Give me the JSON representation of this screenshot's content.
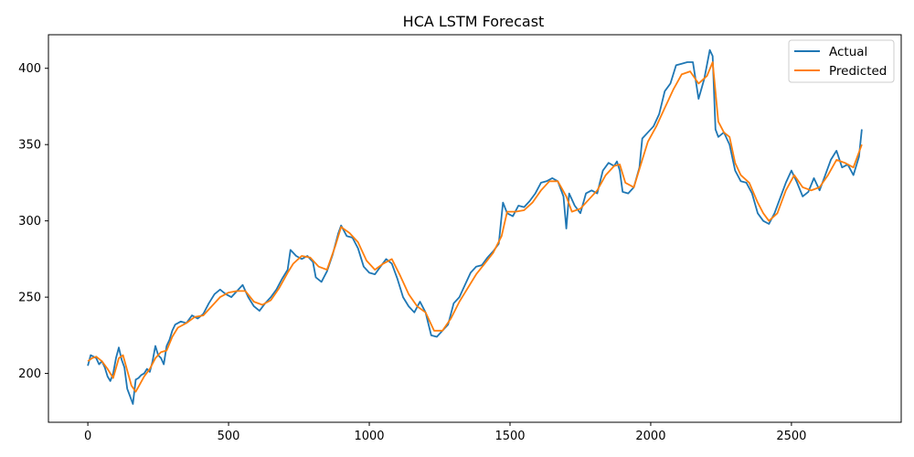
{
  "chart_data": {
    "type": "line",
    "title": "HCA LSTM Forecast",
    "xlabel": "",
    "ylabel": "",
    "xlim": [
      -140,
      2890
    ],
    "ylim": [
      168,
      422
    ],
    "x_ticks": [
      0,
      500,
      1000,
      1500,
      2000,
      2500
    ],
    "y_ticks": [
      200,
      250,
      300,
      350,
      400
    ],
    "grid": false,
    "legend_position": "top-right",
    "series": [
      {
        "name": "Actual",
        "color": "#1f77b4",
        "points": [
          [
            0,
            205
          ],
          [
            10,
            212
          ],
          [
            20,
            211
          ],
          [
            30,
            210
          ],
          [
            40,
            206
          ],
          [
            50,
            208
          ],
          [
            60,
            204
          ],
          [
            70,
            198
          ],
          [
            80,
            195
          ],
          [
            90,
            200
          ],
          [
            100,
            210
          ],
          [
            110,
            217
          ],
          [
            120,
            209
          ],
          [
            130,
            204
          ],
          [
            140,
            190
          ],
          [
            150,
            185
          ],
          [
            160,
            180
          ],
          [
            170,
            196
          ],
          [
            180,
            197
          ],
          [
            190,
            199
          ],
          [
            200,
            200
          ],
          [
            210,
            203
          ],
          [
            220,
            201
          ],
          [
            230,
            208
          ],
          [
            240,
            218
          ],
          [
            250,
            212
          ],
          [
            260,
            210
          ],
          [
            270,
            206
          ],
          [
            280,
            218
          ],
          [
            290,
            222
          ],
          [
            300,
            228
          ],
          [
            310,
            232
          ],
          [
            330,
            234
          ],
          [
            350,
            233
          ],
          [
            370,
            238
          ],
          [
            390,
            236
          ],
          [
            410,
            239
          ],
          [
            430,
            246
          ],
          [
            450,
            252
          ],
          [
            470,
            255
          ],
          [
            490,
            252
          ],
          [
            510,
            250
          ],
          [
            530,
            254
          ],
          [
            550,
            258
          ],
          [
            570,
            250
          ],
          [
            590,
            244
          ],
          [
            610,
            241
          ],
          [
            630,
            246
          ],
          [
            650,
            250
          ],
          [
            670,
            255
          ],
          [
            690,
            262
          ],
          [
            710,
            268
          ],
          [
            720,
            281
          ],
          [
            740,
            277
          ],
          [
            760,
            275
          ],
          [
            780,
            277
          ],
          [
            800,
            273
          ],
          [
            810,
            263
          ],
          [
            830,
            260
          ],
          [
            850,
            267
          ],
          [
            870,
            278
          ],
          [
            890,
            292
          ],
          [
            900,
            297
          ],
          [
            920,
            290
          ],
          [
            940,
            289
          ],
          [
            960,
            282
          ],
          [
            980,
            270
          ],
          [
            1000,
            266
          ],
          [
            1020,
            265
          ],
          [
            1040,
            270
          ],
          [
            1060,
            275
          ],
          [
            1080,
            272
          ],
          [
            1100,
            262
          ],
          [
            1120,
            250
          ],
          [
            1140,
            244
          ],
          [
            1160,
            240
          ],
          [
            1180,
            247
          ],
          [
            1200,
            240
          ],
          [
            1220,
            225
          ],
          [
            1240,
            224
          ],
          [
            1260,
            228
          ],
          [
            1280,
            232
          ],
          [
            1300,
            246
          ],
          [
            1320,
            250
          ],
          [
            1340,
            258
          ],
          [
            1360,
            266
          ],
          [
            1380,
            270
          ],
          [
            1400,
            271
          ],
          [
            1420,
            276
          ],
          [
            1440,
            280
          ],
          [
            1460,
            285
          ],
          [
            1475,
            312
          ],
          [
            1490,
            305
          ],
          [
            1510,
            303
          ],
          [
            1530,
            310
          ],
          [
            1550,
            309
          ],
          [
            1570,
            313
          ],
          [
            1590,
            318
          ],
          [
            1610,
            325
          ],
          [
            1630,
            326
          ],
          [
            1650,
            328
          ],
          [
            1670,
            326
          ],
          [
            1690,
            316
          ],
          [
            1700,
            295
          ],
          [
            1710,
            318
          ],
          [
            1730,
            310
          ],
          [
            1750,
            305
          ],
          [
            1770,
            318
          ],
          [
            1790,
            320
          ],
          [
            1810,
            318
          ],
          [
            1830,
            333
          ],
          [
            1850,
            338
          ],
          [
            1870,
            336
          ],
          [
            1880,
            339
          ],
          [
            1890,
            333
          ],
          [
            1900,
            319
          ],
          [
            1920,
            318
          ],
          [
            1940,
            322
          ],
          [
            1960,
            335
          ],
          [
            1970,
            354
          ],
          [
            1990,
            358
          ],
          [
            2010,
            362
          ],
          [
            2030,
            370
          ],
          [
            2050,
            385
          ],
          [
            2070,
            390
          ],
          [
            2090,
            402
          ],
          [
            2110,
            403
          ],
          [
            2130,
            404
          ],
          [
            2150,
            404
          ],
          [
            2170,
            380
          ],
          [
            2190,
            393
          ],
          [
            2210,
            412
          ],
          [
            2220,
            408
          ],
          [
            2230,
            360
          ],
          [
            2240,
            355
          ],
          [
            2260,
            358
          ],
          [
            2280,
            350
          ],
          [
            2300,
            333
          ],
          [
            2320,
            326
          ],
          [
            2340,
            325
          ],
          [
            2360,
            318
          ],
          [
            2380,
            305
          ],
          [
            2400,
            300
          ],
          [
            2420,
            298
          ],
          [
            2440,
            305
          ],
          [
            2460,
            315
          ],
          [
            2480,
            325
          ],
          [
            2500,
            333
          ],
          [
            2520,
            325
          ],
          [
            2540,
            316
          ],
          [
            2560,
            319
          ],
          [
            2580,
            328
          ],
          [
            2600,
            320
          ],
          [
            2620,
            330
          ],
          [
            2640,
            340
          ],
          [
            2660,
            346
          ],
          [
            2680,
            335
          ],
          [
            2700,
            337
          ],
          [
            2720,
            330
          ],
          [
            2740,
            342
          ],
          [
            2750,
            360
          ]
        ]
      },
      {
        "name": "Predicted",
        "color": "#ff7f0e",
        "points": [
          [
            0,
            208
          ],
          [
            15,
            210
          ],
          [
            30,
            211
          ],
          [
            50,
            208
          ],
          [
            70,
            203
          ],
          [
            90,
            197
          ],
          [
            110,
            210
          ],
          [
            125,
            212
          ],
          [
            140,
            202
          ],
          [
            155,
            192
          ],
          [
            170,
            188
          ],
          [
            185,
            193
          ],
          [
            200,
            198
          ],
          [
            220,
            203
          ],
          [
            240,
            210
          ],
          [
            260,
            214
          ],
          [
            280,
            215
          ],
          [
            300,
            224
          ],
          [
            320,
            230
          ],
          [
            350,
            233
          ],
          [
            380,
            237
          ],
          [
            410,
            238
          ],
          [
            440,
            244
          ],
          [
            470,
            250
          ],
          [
            500,
            253
          ],
          [
            530,
            254
          ],
          [
            560,
            254
          ],
          [
            590,
            247
          ],
          [
            620,
            245
          ],
          [
            650,
            248
          ],
          [
            680,
            256
          ],
          [
            710,
            266
          ],
          [
            730,
            272
          ],
          [
            760,
            277
          ],
          [
            790,
            276
          ],
          [
            820,
            270
          ],
          [
            850,
            268
          ],
          [
            880,
            284
          ],
          [
            900,
            296
          ],
          [
            930,
            292
          ],
          [
            960,
            286
          ],
          [
            990,
            274
          ],
          [
            1020,
            268
          ],
          [
            1050,
            272
          ],
          [
            1080,
            275
          ],
          [
            1110,
            264
          ],
          [
            1140,
            252
          ],
          [
            1170,
            244
          ],
          [
            1200,
            240
          ],
          [
            1230,
            228
          ],
          [
            1260,
            228
          ],
          [
            1290,
            236
          ],
          [
            1320,
            247
          ],
          [
            1350,
            256
          ],
          [
            1380,
            265
          ],
          [
            1410,
            272
          ],
          [
            1440,
            279
          ],
          [
            1470,
            290
          ],
          [
            1490,
            306
          ],
          [
            1520,
            306
          ],
          [
            1550,
            307
          ],
          [
            1580,
            312
          ],
          [
            1610,
            320
          ],
          [
            1640,
            326
          ],
          [
            1670,
            326
          ],
          [
            1700,
            316
          ],
          [
            1720,
            306
          ],
          [
            1750,
            308
          ],
          [
            1780,
            314
          ],
          [
            1810,
            320
          ],
          [
            1840,
            330
          ],
          [
            1870,
            336
          ],
          [
            1890,
            337
          ],
          [
            1910,
            325
          ],
          [
            1940,
            322
          ],
          [
            1970,
            340
          ],
          [
            1990,
            352
          ],
          [
            2020,
            362
          ],
          [
            2050,
            374
          ],
          [
            2080,
            386
          ],
          [
            2110,
            396
          ],
          [
            2140,
            398
          ],
          [
            2170,
            390
          ],
          [
            2200,
            395
          ],
          [
            2220,
            404
          ],
          [
            2240,
            365
          ],
          [
            2260,
            358
          ],
          [
            2280,
            355
          ],
          [
            2300,
            338
          ],
          [
            2320,
            330
          ],
          [
            2350,
            325
          ],
          [
            2380,
            312
          ],
          [
            2400,
            305
          ],
          [
            2420,
            300
          ],
          [
            2450,
            305
          ],
          [
            2480,
            320
          ],
          [
            2510,
            330
          ],
          [
            2540,
            322
          ],
          [
            2570,
            320
          ],
          [
            2600,
            322
          ],
          [
            2630,
            330
          ],
          [
            2660,
            340
          ],
          [
            2690,
            338
          ],
          [
            2720,
            335
          ],
          [
            2750,
            350
          ]
        ]
      }
    ]
  }
}
